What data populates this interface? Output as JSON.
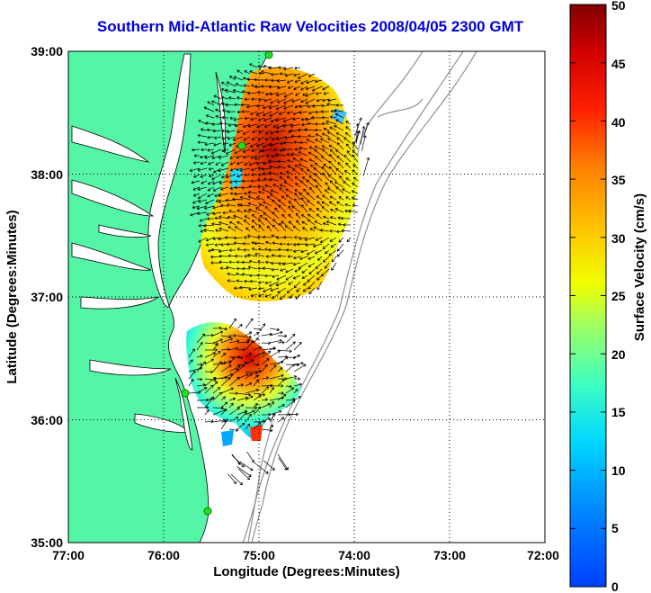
{
  "title": "Southern Mid-Atlantic Raw Velocities 2008/04/05 2300 GMT",
  "axes": {
    "xlabel": "Longitude (Degrees:Minutes)",
    "ylabel": "Latitude (Degrees:Minutes)",
    "x_ticks": [
      "77:00",
      "76:00",
      "75:00",
      "74:00",
      "73:00",
      "72:00"
    ],
    "y_ticks": [
      "39:00",
      "38:00",
      "37:00",
      "36:00",
      "35:00"
    ],
    "xlim": [
      -77,
      -72
    ],
    "ylim": [
      35,
      39
    ]
  },
  "colorbar": {
    "label": "Surface Velocity (cm/s)",
    "ticks": [
      "50",
      "45",
      "40",
      "35",
      "30",
      "25",
      "20",
      "15",
      "10",
      "5",
      "0"
    ],
    "range": [
      0,
      50
    ]
  },
  "colors": {
    "land": "#55f5a8",
    "title": "#0000dd",
    "coastline": "#000000",
    "bathymetry": "#909090"
  }
}
